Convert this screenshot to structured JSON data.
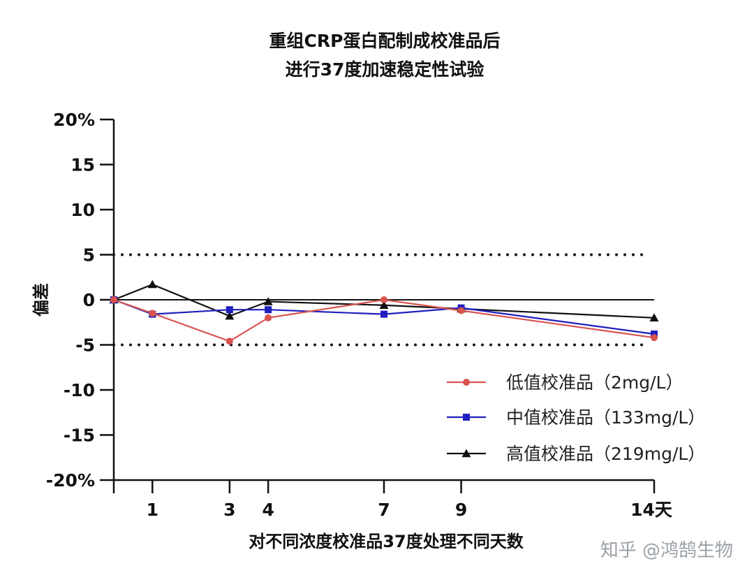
{
  "chart_data": {
    "type": "line",
    "title": [
      "重组CRP蛋白配制成校准品后",
      "进行37度加速稳定性试验"
    ],
    "xlabel": "对不同浓度校准品37度处理不同天数",
    "ylabel": "偏差",
    "x_ticks": [
      {
        "value": 1,
        "label": "1"
      },
      {
        "value": 3,
        "label": "3"
      },
      {
        "value": 4,
        "label": "4"
      },
      {
        "value": 7,
        "label": "7"
      },
      {
        "value": 9,
        "label": "9"
      },
      {
        "value": 14,
        "label": "14天"
      }
    ],
    "y_ticks": [
      {
        "value": 20,
        "label": "20%"
      },
      {
        "value": 15,
        "label": "15"
      },
      {
        "value": 10,
        "label": "10"
      },
      {
        "value": 5,
        "label": "5"
      },
      {
        "value": 0,
        "label": "0"
      },
      {
        "value": -5,
        "label": "-5"
      },
      {
        "value": -10,
        "label": "-10"
      },
      {
        "value": -15,
        "label": "-15"
      },
      {
        "value": -20,
        "label": "-20%"
      }
    ],
    "xlim": [
      0,
      14
    ],
    "ylim": [
      -20,
      20
    ],
    "reference_lines": [
      {
        "y": 5,
        "style": "dotted"
      },
      {
        "y": -5,
        "style": "dotted"
      },
      {
        "y": 0,
        "style": "solid"
      }
    ],
    "x": [
      0,
      1,
      3,
      4,
      7,
      9,
      14
    ],
    "series": [
      {
        "name": "低值校准品（2mg/L）",
        "color": "#d9534f",
        "marker": "circle",
        "values": [
          0,
          -1.5,
          -4.6,
          -2.0,
          0.0,
          -1.2,
          -4.2
        ]
      },
      {
        "name": "中值校准品（133mg/L）",
        "color": "#1f1fbf",
        "marker": "square",
        "values": [
          0,
          -1.6,
          -1.1,
          -1.1,
          -1.6,
          -0.9,
          -3.8
        ]
      },
      {
        "name": "高值校准品（219mg/L）",
        "color": "#111111",
        "marker": "triangle",
        "values": [
          0,
          1.7,
          -1.8,
          -0.2,
          -0.6,
          -1.0,
          -2.0
        ]
      }
    ],
    "legend_position": "bottom-right"
  },
  "watermark": {
    "text": "知乎 @鸿鹄生物"
  }
}
